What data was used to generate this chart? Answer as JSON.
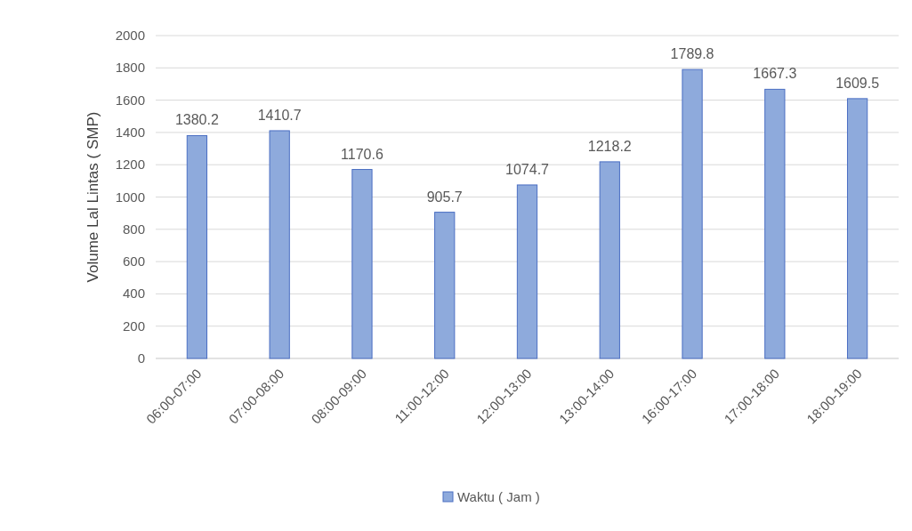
{
  "chart_data": {
    "type": "bar",
    "ylabel": "Volume Lal Lintas ( SMP)",
    "categories": [
      "06:00-07:00",
      "07:00-08:00",
      "08:00-09:00",
      "11:00-12:00",
      "12:00-13:00",
      "13:00-14:00",
      "16:00-17:00",
      "17:00-18:00",
      "18:00-19:00"
    ],
    "series": [
      {
        "name": "Waktu ( Jam )",
        "color": "#8eaadc",
        "values": [
          1380.2,
          1410.7,
          1170.6,
          905.7,
          1074.7,
          1218.2,
          1789.8,
          1667.3,
          1609.5
        ]
      }
    ],
    "ylim": [
      0,
      2000
    ],
    "yticks": [
      0,
      200,
      400,
      600,
      800,
      1000,
      1200,
      1400,
      1600,
      1800,
      2000
    ],
    "grid": "y",
    "legend": "bottom",
    "data_labels": true
  }
}
